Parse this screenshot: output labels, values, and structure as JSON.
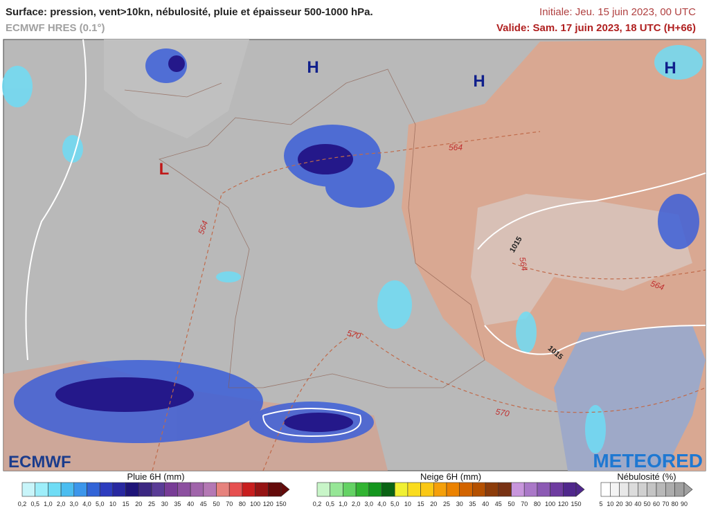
{
  "header": {
    "title": "Surface: pression, vent>10kn, nébulosité, pluie et épaisseur 500-1000 hPa.",
    "model": "ECMWF HRES (0.1°)",
    "initial": "Initiale: Jeu. 15 juin 2023, 00 UTC",
    "valid": "Valide: Sam. 17 juin 2023, 18 UTC (H+66)"
  },
  "map": {
    "pressure_centers": [
      "H",
      "H",
      "H",
      "L"
    ],
    "thickness_labels": [
      "564",
      "564",
      "564",
      "564",
      "570",
      "570"
    ],
    "isobar_labels": [
      "1015",
      "1015"
    ]
  },
  "logos": {
    "left": "ECMWF",
    "right": "METEORED"
  },
  "legends": [
    {
      "title": "Pluie 6H (mm)",
      "ticks": [
        "0,2",
        "0,5",
        "1,0",
        "2,0",
        "3,0",
        "4,0",
        "5,0",
        "10",
        "15",
        "20",
        "25",
        "30",
        "35",
        "40",
        "45",
        "50",
        "70",
        "80",
        "100",
        "120",
        "150"
      ],
      "colors": [
        "#c8f5fa",
        "#9eeefa",
        "#6fdcf5",
        "#4bbdf0",
        "#3c96eb",
        "#3264d7",
        "#2d3cbe",
        "#2828a0",
        "#1e1478",
        "#3c2882",
        "#5a3c96",
        "#783c96",
        "#8c50a0",
        "#a064aa",
        "#b478b4",
        "#e6827d",
        "#e65050",
        "#c81e1e",
        "#961414",
        "#640a0a"
      ]
    },
    {
      "title": "Neige 6H (mm)",
      "ticks": [
        "0,2",
        "0,5",
        "1,0",
        "2,0",
        "3,0",
        "4,0",
        "5,0",
        "10",
        "15",
        "20",
        "25",
        "30",
        "35",
        "40",
        "45",
        "50",
        "70",
        "80",
        "100",
        "120",
        "150"
      ],
      "colors": [
        "#c8f5c8",
        "#96e696",
        "#64d264",
        "#32b432",
        "#14961e",
        "#0a6414",
        "#f0f032",
        "#fadc1e",
        "#fac814",
        "#f5a00a",
        "#eb8200",
        "#d26400",
        "#b45000",
        "#8c3c0a",
        "#783214",
        "#c896dc",
        "#aa78c8",
        "#8c5ab4",
        "#6e3ca0",
        "#50288c"
      ]
    },
    {
      "title": "Nébulosité (%)",
      "ticks": [
        "5",
        "10",
        "20",
        "30",
        "40",
        "50",
        "60",
        "70",
        "80",
        "90"
      ],
      "colors": [
        "#ffffff",
        "#f4f4f4",
        "#e8e8e8",
        "#dcdcdc",
        "#d0d0d0",
        "#c4c4c4",
        "#b8b8b8",
        "#acacac",
        "#a0a0a0"
      ]
    }
  ]
}
